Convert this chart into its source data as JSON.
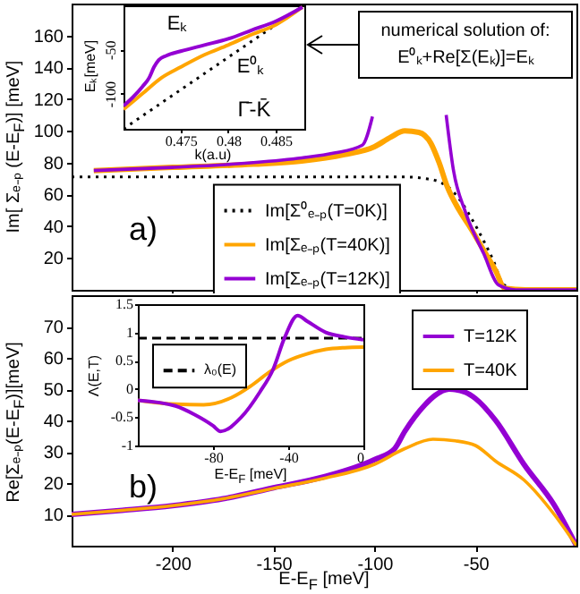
{
  "chart_data": [
    {
      "type": "line",
      "ylabel": "Im[ Σₑ₋ₚ (E-E$_{F}$)] [meV]",
      "xlim": [
        -250,
        0
      ],
      "xticks": [
        -200,
        -150,
        -100,
        -50
      ],
      "ylim": [
        0,
        180
      ],
      "yticks": [
        20,
        40,
        60,
        80,
        100,
        120,
        140,
        160
      ],
      "tick_labels": "y",
      "legend": "bottom",
      "annotations": [
        "a)",
        "numerical solution of:",
        "E⁰ₖ+Re[Σ(Eₖ)]=Eₖ"
      ],
      "series": [
        {
          "name": "Im[Σ⁰ₑ₋ₚ(T=0K)]",
          "color": "#000000",
          "line_style": "dotted",
          "x": [
            -250,
            -120,
            -85,
            -75,
            -68,
            -62,
            -58,
            -52,
            -46,
            -41,
            -36.5,
            -30,
            0
          ],
          "values": [
            71,
            71,
            71,
            70,
            68,
            63,
            57,
            45,
            31,
            18,
            4,
            0,
            0
          ]
        },
        {
          "name": "Im[Σₑ₋ₚ(T=40K)]",
          "color": "#ffa500",
          "x": [
            -239,
            -200,
            -160,
            -136,
            -115,
            -100,
            -92,
            -85,
            -78,
            -72,
            -68,
            -64,
            -58,
            -52,
            -46,
            -40,
            -35.5,
            -25,
            0
          ],
          "values": [
            75,
            77,
            79,
            81,
            85,
            90,
            96,
            100,
            99,
            92,
            80,
            65,
            50,
            38,
            25,
            12,
            1,
            0,
            0
          ]
        },
        {
          "name": "Im[Σₑ₋ₚ(T=12K)]",
          "color": "#9400d3",
          "x": [
            -239,
            -200,
            -160,
            -136,
            -120,
            -106,
            -101,
            -90,
            -64.5,
            -61,
            -55,
            -46,
            -38.5,
            -30,
            -10,
            0
          ],
          "values": [
            75,
            77,
            80,
            83,
            86,
            91,
            109,
            null,
            110,
            76,
            49,
            23,
            3,
            0,
            0,
            0
          ]
        }
      ]
    },
    {
      "type": "line",
      "xlabel": "k(a.u)",
      "ylabel": "Eₖ[meV]",
      "xlim": [
        0.469,
        0.488
      ],
      "xticks": [
        0.475,
        0.48,
        0.485
      ],
      "ylim": [
        -140,
        0
      ],
      "yticks": [
        -100,
        -50
      ],
      "annotations": [
        "Eₖ",
        "E⁰ₖ",
        "Γ̄-K̄"
      ],
      "series": [
        {
          "color": "#000000",
          "line_style": "dotted",
          "x": [
            0.469,
            0.488
          ],
          "values": [
            -140,
            0
          ]
        },
        {
          "color": "#ffa500",
          "x": [
            0.469,
            0.471,
            0.473,
            0.475,
            0.4775,
            0.48,
            0.4825,
            0.485,
            0.4878
          ],
          "values": [
            -118,
            -100,
            -82,
            -70,
            -56,
            -45,
            -33,
            -22,
            -2
          ]
        },
        {
          "color": "#9400d3",
          "x": [
            0.469,
            0.47,
            0.471,
            0.4717,
            0.4722,
            0.4727,
            0.4735,
            0.475,
            0.4775,
            0.48,
            0.4825,
            0.485,
            0.4878
          ],
          "values": [
            -114,
            -104,
            -92,
            -82,
            -70,
            -62,
            -57,
            -52,
            -45,
            -38,
            -28,
            -18,
            -2
          ]
        }
      ]
    },
    {
      "type": "line",
      "xlabel": "E-E$_{F}$ [meV]",
      "ylabel": "Re[Σₑ₋ₚ(E-E$_{F}$)][meV]",
      "xlim": [
        -250,
        0
      ],
      "xticks": [
        -200,
        -150,
        -100,
        -50
      ],
      "ylim": [
        0,
        80
      ],
      "yticks": [
        10,
        20,
        30,
        40,
        50,
        60,
        70
      ],
      "legend": "top right",
      "annotations": [
        "b)"
      ],
      "series": [
        {
          "name": "T=12K",
          "color": "#9400d3",
          "x": [
            -250,
            -225,
            -200,
            -175,
            -150,
            -125,
            -100,
            -90,
            -85,
            -75,
            -70,
            -63,
            -55,
            -50,
            -40,
            -26,
            -11,
            0
          ],
          "values": [
            10,
            11.3,
            12.8,
            15,
            18.5,
            22,
            27.5,
            31,
            36.5,
            45,
            48,
            50,
            49,
            47,
            40,
            26,
            13,
            0
          ]
        },
        {
          "name": "T=40K",
          "color": "#ffa500",
          "x": [
            -250,
            -225,
            -200,
            -175,
            -150,
            -125,
            -100,
            -85,
            -71,
            -60,
            -50,
            -40,
            -26,
            -11,
            0
          ],
          "values": [
            10,
            11.3,
            12.8,
            15,
            18.3,
            21.5,
            26,
            31,
            34,
            33.5,
            32,
            27,
            21,
            10,
            0
          ]
        }
      ]
    },
    {
      "type": "line",
      "xlabel": "E-E$_{F}$ [meV]",
      "ylabel": "Λ(E,T)",
      "xlim": [
        -120,
        0
      ],
      "xticks": [
        -80,
        -40,
        0
      ],
      "ylim": [
        -1,
        1.5
      ],
      "yticks": [
        -1,
        -0.5,
        0,
        0.5,
        1,
        1.5
      ],
      "legend": "left",
      "series": [
        {
          "name": "λ₀(E)",
          "color": "#000000",
          "line_style": "dashed",
          "x": [
            -120,
            0
          ],
          "values": [
            0.9,
            0.9
          ]
        },
        {
          "color": "#ffa500",
          "x": [
            -120,
            -100,
            -85,
            -70,
            -60,
            -50,
            -40,
            -30,
            -20,
            -10,
            0
          ],
          "values": [
            -0.2,
            -0.27,
            -0.28,
            -0.15,
            0.05,
            0.3,
            0.5,
            0.62,
            0.7,
            0.73,
            0.74
          ]
        },
        {
          "color": "#9400d3",
          "x": [
            -120,
            -100,
            -90,
            -80,
            -76,
            -65,
            -55,
            -48,
            -42,
            -35,
            -30,
            -20,
            -10,
            0
          ],
          "values": [
            -0.2,
            -0.3,
            -0.45,
            -0.65,
            -0.75,
            -0.5,
            -0.05,
            0.35,
            0.9,
            1.3,
            1.2,
            1.0,
            0.92,
            0.87
          ]
        }
      ]
    }
  ]
}
